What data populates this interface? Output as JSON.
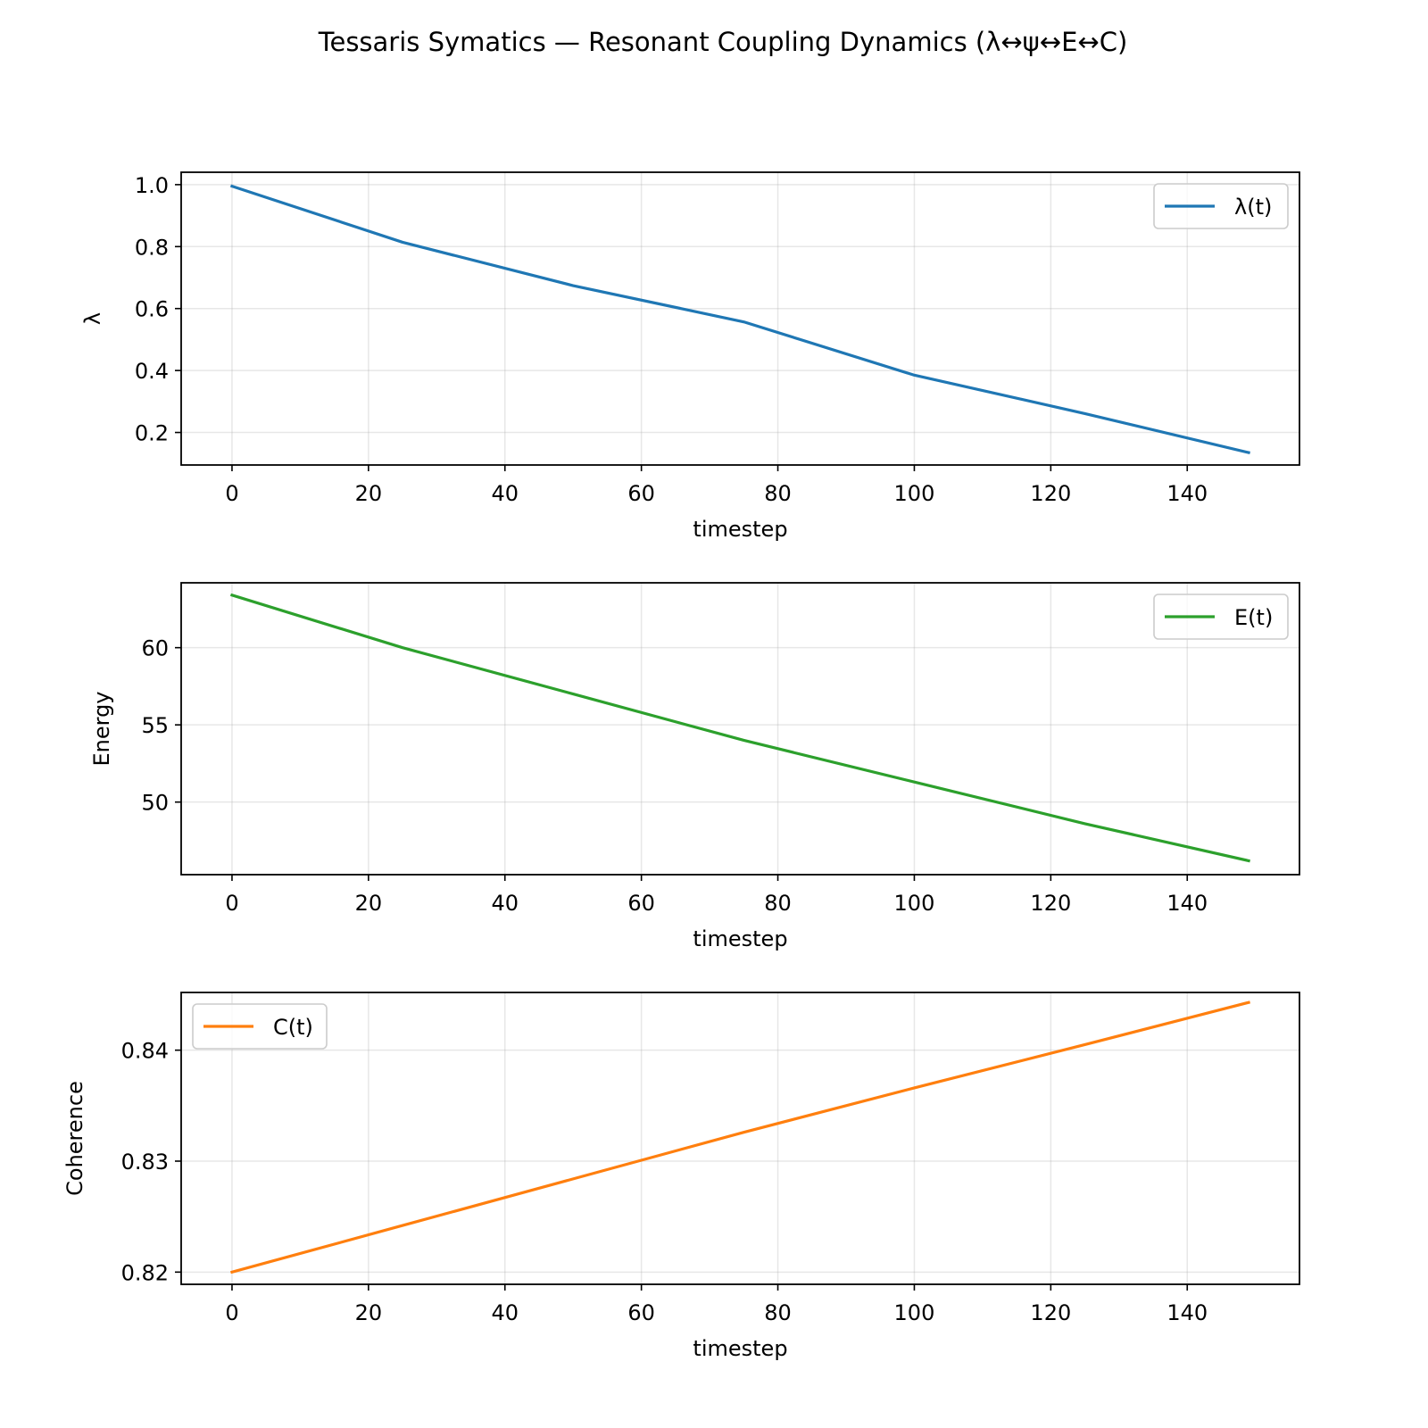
{
  "figure": {
    "title": "Tessaris Symatics — Resonant Coupling Dynamics (λ↔ψ↔E↔C)"
  },
  "chart_data": [
    {
      "type": "line",
      "xlabel": "timestep",
      "ylabel": "λ",
      "xlim": [
        -7.45,
        156.45
      ],
      "ylim": [
        0.095,
        1.04
      ],
      "xticks": [
        0,
        20,
        40,
        60,
        80,
        100,
        120,
        140
      ],
      "xtick_labels": [
        "0",
        "20",
        "40",
        "60",
        "80",
        "100",
        "120",
        "140"
      ],
      "yticks": [
        0.2,
        0.4,
        0.6,
        0.8,
        1.0
      ],
      "ytick_labels": [
        "0.2",
        "0.4",
        "0.6",
        "0.8",
        "1.0"
      ],
      "grid": true,
      "legend": {
        "placement": "upper right"
      },
      "series": [
        {
          "name": "λ(t)",
          "color": "#1f77b4",
          "x": [
            0,
            25,
            50,
            75,
            100,
            125,
            149
          ],
          "y": [
            0.995,
            0.814,
            0.674,
            0.557,
            0.385,
            0.261,
            0.135
          ]
        }
      ]
    },
    {
      "type": "line",
      "xlabel": "timestep",
      "ylabel": "Energy",
      "xlim": [
        -7.45,
        156.45
      ],
      "ylim": [
        45.3,
        64.2
      ],
      "xticks": [
        0,
        20,
        40,
        60,
        80,
        100,
        120,
        140
      ],
      "xtick_labels": [
        "0",
        "20",
        "40",
        "60",
        "80",
        "100",
        "120",
        "140"
      ],
      "yticks": [
        50,
        55,
        60
      ],
      "ytick_labels": [
        "50",
        "55",
        "60"
      ],
      "grid": true,
      "legend": {
        "placement": "upper right"
      },
      "series": [
        {
          "name": "E(t)",
          "color": "#2ca02c",
          "x": [
            0,
            25,
            50,
            75,
            100,
            125,
            149
          ],
          "y": [
            63.4,
            60.0,
            57.0,
            54.0,
            51.3,
            48.6,
            46.2
          ]
        }
      ]
    },
    {
      "type": "line",
      "xlabel": "timestep",
      "ylabel": "Coherence",
      "xlim": [
        -7.45,
        156.45
      ],
      "ylim": [
        0.8189,
        0.8452
      ],
      "xticks": [
        0,
        20,
        40,
        60,
        80,
        100,
        120,
        140
      ],
      "xtick_labels": [
        "0",
        "20",
        "40",
        "60",
        "80",
        "100",
        "120",
        "140"
      ],
      "yticks": [
        0.82,
        0.83,
        0.84
      ],
      "ytick_labels": [
        "0.82",
        "0.83",
        "0.84"
      ],
      "grid": true,
      "legend": {
        "placement": "upper left"
      },
      "series": [
        {
          "name": "C(t)",
          "color": "#ff7f0e",
          "x": [
            0,
            25,
            50,
            75,
            100,
            125,
            149
          ],
          "y": [
            0.82,
            0.8242,
            0.8284,
            0.8326,
            0.8366,
            0.8405,
            0.8443
          ]
        }
      ]
    }
  ]
}
